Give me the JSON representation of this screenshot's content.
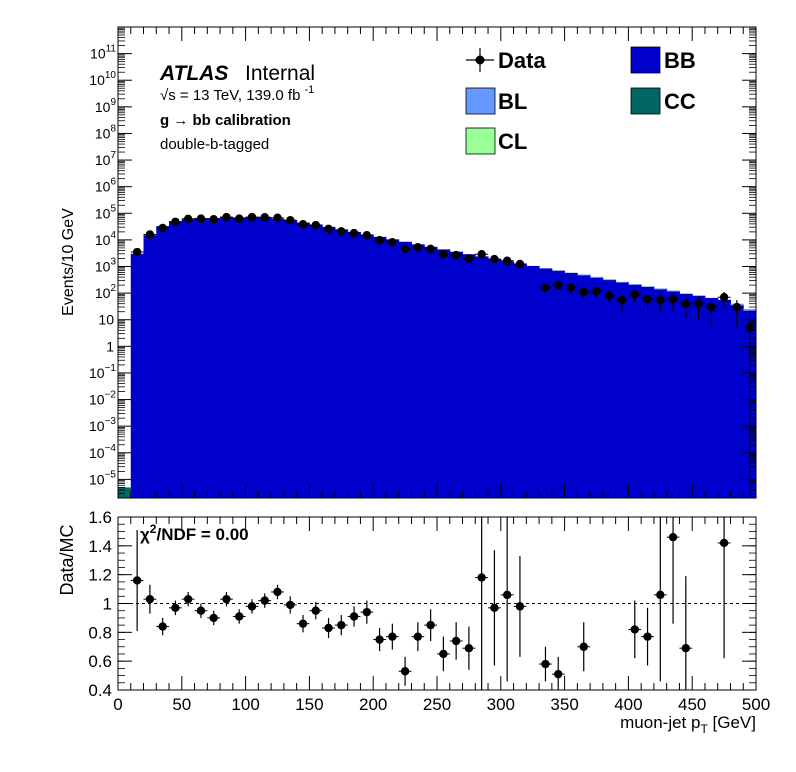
{
  "chart_data": [
    {
      "type": "bar",
      "subtype": "stacked-histogram-with-data-points",
      "panel": "main",
      "ylabel": "Events/10 GeV",
      "yscale": "log",
      "ylim": [
        2e-06,
        1000000000000.0
      ],
      "xlim": [
        0,
        500
      ],
      "ytick_labels": [
        {
          "v": 100000000000.0,
          "m": "10",
          "e": "11"
        },
        {
          "v": 10000000000.0,
          "m": "10",
          "e": "10"
        },
        {
          "v": 1000000000.0,
          "m": "10",
          "e": "9"
        },
        {
          "v": 100000000.0,
          "m": "10",
          "e": "8"
        },
        {
          "v": 10000000.0,
          "m": "10",
          "e": "7"
        },
        {
          "v": 1000000.0,
          "m": "10",
          "e": "6"
        },
        {
          "v": 100000.0,
          "m": "10",
          "e": "5"
        },
        {
          "v": 10000.0,
          "m": "10",
          "e": "4"
        },
        {
          "v": 1000.0,
          "m": "10",
          "e": "3"
        },
        {
          "v": 100.0,
          "m": "10",
          "e": "2"
        },
        {
          "v": 10,
          "m": "10",
          "e": ""
        },
        {
          "v": 1,
          "m": "1",
          "e": ""
        },
        {
          "v": 0.1,
          "m": "10",
          "e": "−1"
        },
        {
          "v": 0.01,
          "m": "10",
          "e": "−2"
        },
        {
          "v": 0.001,
          "m": "10",
          "e": "−3"
        },
        {
          "v": 0.0001,
          "m": "10",
          "e": "−4"
        },
        {
          "v": 1e-05,
          "m": "10",
          "e": "−5"
        }
      ],
      "annotations": {
        "atlas": "ATLAS",
        "internal": "Internal",
        "energy_sqrt": "√s",
        "energy": " = 13 TeV, 139.0 fb",
        "energy_exp": "-1",
        "process": "g  → bb calibration",
        "selection": "double-b-tagged"
      },
      "legend": {
        "placement": "top-right",
        "entries": [
          {
            "label": "Data",
            "kind": "marker"
          },
          {
            "label": "BB",
            "kind": "box",
            "color": "#0000cc"
          },
          {
            "label": "BL",
            "kind": "box",
            "color": "#6699ff"
          },
          {
            "label": "CC",
            "kind": "box",
            "color": "#006666"
          },
          {
            "label": "CL",
            "kind": "box",
            "color": "#99ff99"
          }
        ]
      },
      "x": [
        5,
        15,
        25,
        35,
        45,
        55,
        65,
        75,
        85,
        95,
        105,
        115,
        125,
        135,
        145,
        155,
        165,
        175,
        185,
        195,
        205,
        215,
        225,
        235,
        245,
        255,
        265,
        275,
        285,
        295,
        305,
        315,
        325,
        335,
        345,
        355,
        365,
        375,
        385,
        395,
        405,
        415,
        425,
        435,
        445,
        455,
        465,
        475,
        485,
        495
      ],
      "series": [
        {
          "name": "BB",
          "color": "#0000cc",
          "values": [
            2e-06,
            3000,
            15000,
            33000,
            50000,
            60000,
            66000,
            66000,
            70000,
            70000,
            73000,
            70000,
            63000,
            55000,
            45000,
            38000,
            31000,
            25000,
            20000,
            16000,
            13000,
            10500,
            8500,
            6800,
            5500,
            4400,
            3600,
            2900,
            2400,
            1950,
            1580,
            1280,
            1050,
            850,
            700,
            570,
            470,
            380,
            310,
            250,
            205,
            170,
            140,
            115,
            95,
            80,
            66,
            56,
            35,
            22
          ]
        },
        {
          "name": "BL",
          "color": "#6699ff",
          "values": [
            0,
            0,
            0,
            0,
            0,
            0,
            0,
            0,
            0,
            0,
            0,
            0,
            0,
            0,
            0,
            0,
            0,
            0,
            0,
            0,
            0,
            0,
            0,
            0,
            0,
            0,
            0,
            0,
            0,
            0,
            0,
            0,
            0,
            0,
            0,
            20,
            30,
            30,
            20,
            15,
            15,
            10,
            10,
            10,
            0,
            0,
            0,
            0,
            5,
            3
          ]
        },
        {
          "name": "CC",
          "color": "#006666",
          "values": [
            3e-06,
            0,
            0,
            0,
            0,
            0,
            0,
            0,
            0,
            0,
            0,
            0,
            0,
            0,
            0,
            0,
            0,
            0,
            0,
            0,
            0,
            0,
            0,
            0,
            0,
            0,
            0,
            0,
            0,
            0,
            0,
            0,
            0,
            0,
            0,
            0,
            0,
            0,
            0,
            0,
            0,
            0,
            0,
            0,
            0,
            0,
            0,
            0,
            0,
            0
          ]
        }
      ],
      "data_points": {
        "name": "Data",
        "x": [
          15,
          25,
          35,
          45,
          55,
          65,
          75,
          85,
          95,
          105,
          115,
          125,
          135,
          145,
          155,
          165,
          175,
          185,
          195,
          205,
          215,
          225,
          235,
          245,
          255,
          265,
          275,
          285,
          295,
          305,
          315,
          335,
          345,
          355,
          365,
          375,
          385,
          395,
          405,
          415,
          425,
          435,
          445,
          455,
          465,
          475,
          485,
          495
        ],
        "y": [
          3500,
          16000,
          28000,
          48000,
          62000,
          63000,
          60000,
          72000,
          63000,
          72000,
          71000,
          68000,
          55000,
          39000,
          36000,
          26000,
          21000,
          18000,
          15000,
          9800,
          8200,
          4600,
          5300,
          4600,
          2900,
          2700,
          2000,
          2900,
          1900,
          1650,
          1250,
          160,
          200,
          160,
          110,
          120,
          80,
          55,
          90,
          60,
          55,
          60,
          40,
          40,
          30,
          70,
          30,
          5
        ],
        "yerr": [
          200,
          600,
          800,
          1000,
          1100,
          1100,
          1100,
          1200,
          1100,
          1200,
          1200,
          1200,
          1000,
          900,
          850,
          700,
          650,
          600,
          550,
          450,
          400,
          300,
          320,
          300,
          250,
          240,
          200,
          240,
          200,
          190,
          160,
          60,
          65,
          60,
          50,
          52,
          40,
          35,
          45,
          38,
          35,
          38,
          30,
          30,
          25,
          40,
          25,
          10
        ]
      }
    },
    {
      "type": "scatter",
      "panel": "ratio",
      "xlabel_main": "muon-jet p",
      "xlabel_sub": "T",
      "xlabel_unit": " [GeV]",
      "ylabel": "Data/MC",
      "xlim": [
        0,
        500
      ],
      "ylim": [
        0.4,
        1.6
      ],
      "xticks": [
        "0",
        "50",
        "100",
        "150",
        "200",
        "250",
        "300",
        "350",
        "400",
        "450",
        "500"
      ],
      "yticks": [
        "0.4",
        "0.6",
        "0.8",
        "1",
        "1.2",
        "1.4",
        "1.6"
      ],
      "reference_line": 1,
      "chi2_prefix": "χ",
      "chi2_sup": "2",
      "chi2_text": "/NDF = 0.00",
      "points": {
        "x": [
          15,
          25,
          35,
          45,
          55,
          65,
          75,
          85,
          95,
          105,
          115,
          125,
          135,
          145,
          155,
          165,
          175,
          185,
          195,
          205,
          215,
          225,
          235,
          245,
          255,
          265,
          275,
          285,
          295,
          305,
          315,
          335,
          345,
          365,
          405,
          415,
          425,
          435,
          445,
          475
        ],
        "y": [
          1.16,
          1.03,
          0.84,
          0.97,
          1.03,
          0.95,
          0.9,
          1.03,
          0.91,
          0.98,
          1.02,
          1.08,
          0.99,
          0.86,
          0.95,
          0.83,
          0.85,
          0.91,
          0.94,
          0.75,
          0.77,
          0.53,
          0.77,
          0.85,
          0.65,
          0.74,
          0.69,
          1.18,
          0.97,
          1.06,
          0.98,
          0.58,
          0.51,
          0.7,
          0.82,
          0.77,
          1.06,
          1.46,
          0.69,
          1.42
        ],
        "yerr": [
          0.35,
          0.1,
          0.06,
          0.05,
          0.05,
          0.05,
          0.05,
          0.05,
          0.05,
          0.05,
          0.05,
          0.05,
          0.06,
          0.06,
          0.06,
          0.07,
          0.07,
          0.07,
          0.08,
          0.08,
          0.09,
          0.1,
          0.1,
          0.11,
          0.12,
          0.13,
          0.15,
          0.8,
          0.4,
          0.6,
          0.35,
          0.12,
          0.12,
          0.17,
          0.2,
          0.2,
          0.6,
          0.6,
          0.5,
          0.8
        ]
      }
    }
  ]
}
